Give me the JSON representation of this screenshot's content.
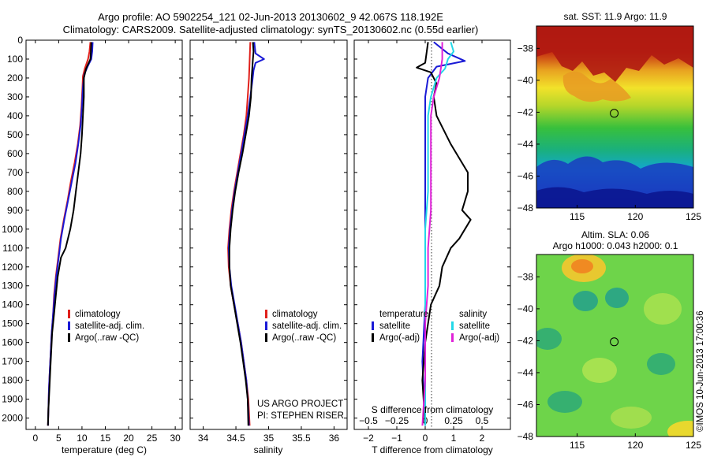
{
  "header": {
    "title_line1": "Argo profile: AO 5902254_121 02-Jun-2013 20130602_9 42.067S 118.192E",
    "title_line2": "Climatology: CARS2009. Satellite-adjusted climatology: synTS_20130602.nc (0.55d earlier)"
  },
  "credits": {
    "project": "US ARGO PROJECT",
    "pi": "PI: STEPHEN RISER"
  },
  "watermark": "©IMOS 10-Jun-2013 17:00:36",
  "colors": {
    "climatology": "#e0201b",
    "satellite": "#1a1ad6",
    "argo": "#000000",
    "satellite_salinity": "#22d8e8",
    "argo_salinity": "#e022d8"
  },
  "chart_data": [
    {
      "type": "line",
      "name": "temperature-profile",
      "xlabel": "temperature (deg C)",
      "xlim": [
        -2,
        31.5
      ],
      "xticks": [
        0,
        5,
        10,
        15,
        20,
        25,
        30
      ],
      "ylim": [
        0,
        2060
      ],
      "yticks": [
        0,
        100,
        200,
        300,
        400,
        500,
        600,
        700,
        800,
        900,
        1000,
        1100,
        1200,
        1300,
        1400,
        1500,
        1600,
        1700,
        1800,
        1900,
        2000
      ],
      "legend": [
        "climatology",
        "satellite-adj. clim.",
        "Argo(..raw -QC)"
      ],
      "legend_position": "lower-center",
      "series": [
        {
          "name": "climatology",
          "color_key": "climatology",
          "points": [
            [
              11.8,
              10
            ],
            [
              11.6,
              60
            ],
            [
              11.3,
              100
            ],
            [
              10.6,
              150
            ],
            [
              10.2,
              190
            ],
            [
              10.1,
              250
            ],
            [
              9.9,
              350
            ],
            [
              9.6,
              450
            ],
            [
              9.1,
              550
            ],
            [
              8.4,
              650
            ],
            [
              7.6,
              750
            ],
            [
              6.9,
              850
            ],
            [
              6.1,
              950
            ],
            [
              5.4,
              1050
            ],
            [
              4.9,
              1150
            ],
            [
              4.4,
              1250
            ],
            [
              4.0,
              1350
            ],
            [
              3.8,
              1450
            ],
            [
              3.5,
              1550
            ],
            [
              3.3,
              1650
            ],
            [
              3.1,
              1750
            ],
            [
              2.9,
              1850
            ],
            [
              2.8,
              1950
            ],
            [
              2.7,
              2040
            ]
          ]
        },
        {
          "name": "satellite-adj. clim.",
          "color_key": "satellite",
          "points": [
            [
              12.3,
              10
            ],
            [
              12.2,
              60
            ],
            [
              12.0,
              100
            ],
            [
              11.2,
              140
            ],
            [
              10.5,
              180
            ],
            [
              10.2,
              250
            ],
            [
              10.0,
              350
            ],
            [
              9.7,
              450
            ],
            [
              9.2,
              550
            ],
            [
              8.6,
              650
            ],
            [
              7.8,
              750
            ],
            [
              7.0,
              850
            ],
            [
              6.2,
              950
            ],
            [
              5.5,
              1050
            ],
            [
              5.0,
              1150
            ],
            [
              4.5,
              1250
            ],
            [
              4.1,
              1350
            ],
            [
              3.8,
              1450
            ],
            [
              3.5,
              1550
            ],
            [
              3.3,
              1650
            ],
            [
              3.1,
              1750
            ],
            [
              2.9,
              1850
            ],
            [
              2.8,
              1950
            ],
            [
              2.7,
              2040
            ]
          ]
        },
        {
          "name": "Argo(..raw -QC)",
          "color_key": "argo",
          "points": [
            [
              12.0,
              10
            ],
            [
              11.9,
              60
            ],
            [
              11.8,
              100
            ],
            [
              10.9,
              150
            ],
            [
              10.4,
              200
            ],
            [
              10.4,
              300
            ],
            [
              10.2,
              400
            ],
            [
              10.0,
              500
            ],
            [
              9.7,
              600
            ],
            [
              9.2,
              700
            ],
            [
              8.7,
              800
            ],
            [
              8.2,
              900
            ],
            [
              7.5,
              1000
            ],
            [
              6.5,
              1100
            ],
            [
              5.5,
              1150
            ],
            [
              4.8,
              1250
            ],
            [
              4.4,
              1350
            ],
            [
              4.0,
              1450
            ],
            [
              3.6,
              1550
            ],
            [
              3.4,
              1650
            ],
            [
              3.2,
              1750
            ],
            [
              3.0,
              1850
            ],
            [
              2.8,
              1950
            ],
            [
              2.7,
              2040
            ]
          ]
        }
      ]
    },
    {
      "type": "line",
      "name": "salinity-profile",
      "xlabel": "salinity",
      "xlim": [
        33.8,
        36.2
      ],
      "xticks": [
        34,
        34.5,
        35,
        35.5,
        36
      ],
      "xticklabels": [
        "34",
        "34.5",
        "35",
        "35.5",
        "36"
      ],
      "ylim": [
        0,
        2060
      ],
      "legend": [
        "climatology",
        "satellite-adj. clim.",
        "Argo(..raw -QC)"
      ],
      "legend_position": "lower-center",
      "series": [
        {
          "name": "climatology",
          "color_key": "climatology",
          "points": [
            [
              34.72,
              10
            ],
            [
              34.71,
              100
            ],
            [
              34.7,
              200
            ],
            [
              34.68,
              300
            ],
            [
              34.66,
              400
            ],
            [
              34.62,
              500
            ],
            [
              34.57,
              600
            ],
            [
              34.52,
              700
            ],
            [
              34.47,
              800
            ],
            [
              34.43,
              900
            ],
            [
              34.4,
              1000
            ],
            [
              34.38,
              1100
            ],
            [
              34.39,
              1200
            ],
            [
              34.42,
              1300
            ],
            [
              34.47,
              1400
            ],
            [
              34.53,
              1500
            ],
            [
              34.58,
              1600
            ],
            [
              34.62,
              1700
            ],
            [
              34.66,
              1800
            ],
            [
              34.69,
              1900
            ],
            [
              34.71,
              2040
            ]
          ]
        },
        {
          "name": "satellite-adj. clim.",
          "color_key": "satellite",
          "points": [
            [
              34.78,
              10
            ],
            [
              34.8,
              70
            ],
            [
              34.93,
              100
            ],
            [
              34.8,
              120
            ],
            [
              34.77,
              160
            ],
            [
              34.75,
              220
            ],
            [
              34.72,
              300
            ],
            [
              34.68,
              400
            ],
            [
              34.63,
              500
            ],
            [
              34.58,
              600
            ],
            [
              34.53,
              700
            ],
            [
              34.48,
              800
            ],
            [
              34.44,
              900
            ],
            [
              34.41,
              1000
            ],
            [
              34.39,
              1100
            ],
            [
              34.4,
              1200
            ],
            [
              34.43,
              1300
            ],
            [
              34.48,
              1400
            ],
            [
              34.53,
              1500
            ],
            [
              34.58,
              1600
            ],
            [
              34.62,
              1700
            ],
            [
              34.66,
              1800
            ],
            [
              34.68,
              1900
            ],
            [
              34.7,
              2040
            ]
          ]
        },
        {
          "name": "Argo(..raw -QC)",
          "color_key": "argo",
          "points": [
            [
              34.76,
              10
            ],
            [
              34.77,
              60
            ],
            [
              34.76,
              100
            ],
            [
              34.75,
              150
            ],
            [
              34.74,
              200
            ],
            [
              34.73,
              300
            ],
            [
              34.7,
              400
            ],
            [
              34.65,
              500
            ],
            [
              34.6,
              600
            ],
            [
              34.54,
              700
            ],
            [
              34.49,
              800
            ],
            [
              34.45,
              900
            ],
            [
              34.42,
              1000
            ],
            [
              34.4,
              1100
            ],
            [
              34.4,
              1200
            ],
            [
              34.42,
              1300
            ],
            [
              34.47,
              1400
            ],
            [
              34.52,
              1500
            ],
            [
              34.57,
              1600
            ],
            [
              34.61,
              1700
            ],
            [
              34.65,
              1800
            ],
            [
              34.68,
              1900
            ],
            [
              34.69,
              2040
            ]
          ]
        }
      ]
    },
    {
      "type": "line",
      "name": "difference-profile",
      "xlabel": "T difference from climatology",
      "xlabel_top": "S difference from climatology",
      "xlim": [
        -2.5,
        3
      ],
      "xticks": [
        -2,
        -1,
        0,
        1,
        2
      ],
      "xticklabels": [
        "−2",
        "−1",
        "0",
        "1",
        "2"
      ],
      "x2ticks": [
        -2,
        -1,
        0,
        1,
        2
      ],
      "x2ticklabels": [
        "−0.5",
        "−0.25",
        "0",
        "0.25",
        "0.5"
      ],
      "ylim": [
        0,
        2060
      ],
      "legend_groups": [
        {
          "heading": "temperature",
          "entries": [
            "satellite",
            "Argo(-adj)"
          ]
        },
        {
          "heading": "salinity",
          "entries": [
            "satellite",
            "Argo(-adj)"
          ]
        }
      ],
      "series": [
        {
          "name": "temperature satellite",
          "color_key": "satellite",
          "points": [
            [
              0.3,
              10
            ],
            [
              0.8,
              70
            ],
            [
              1.4,
              110
            ],
            [
              0.4,
              140
            ],
            [
              0.1,
              200
            ],
            [
              0.0,
              300
            ],
            [
              0.0,
              500
            ],
            [
              0.0,
              800
            ],
            [
              0.0,
              1100
            ],
            [
              0.0,
              1400
            ],
            [
              -0.1,
              1700
            ],
            [
              0.0,
              2040
            ]
          ]
        },
        {
          "name": "temperature Argo(-adj)",
          "color_key": "argo",
          "points": [
            [
              0.1,
              10
            ],
            [
              0.0,
              120
            ],
            [
              -0.3,
              145
            ],
            [
              0.2,
              170
            ],
            [
              0.4,
              230
            ],
            [
              0.3,
              300
            ],
            [
              0.4,
              400
            ],
            [
              0.9,
              550
            ],
            [
              1.5,
              700
            ],
            [
              1.5,
              800
            ],
            [
              1.3,
              900
            ],
            [
              1.6,
              950
            ],
            [
              1.2,
              1050
            ],
            [
              0.9,
              1100
            ],
            [
              0.6,
              1200
            ],
            [
              0.5,
              1300
            ],
            [
              0.2,
              1400
            ],
            [
              0.1,
              1500
            ],
            [
              0.0,
              1600
            ],
            [
              -0.1,
              1800
            ],
            [
              0.0,
              2040
            ]
          ]
        },
        {
          "name": "salinity satellite",
          "color_key": "satellite_salinity",
          "points": [
            [
              0.9,
              10
            ],
            [
              1.0,
              60
            ],
            [
              0.8,
              100
            ],
            [
              0.7,
              150
            ],
            [
              0.4,
              200
            ],
            [
              0.2,
              300
            ],
            [
              0.1,
              400
            ],
            [
              0.1,
              600
            ],
            [
              0.1,
              800
            ],
            [
              0.0,
              1000
            ],
            [
              0.0,
              1200
            ],
            [
              0.0,
              1500
            ],
            [
              0.0,
              1800
            ],
            [
              0.0,
              2040
            ]
          ]
        },
        {
          "name": "salinity Argo(-adj)",
          "color_key": "argo_salinity",
          "points": [
            [
              0.6,
              10
            ],
            [
              0.6,
              100
            ],
            [
              0.5,
              200
            ],
            [
              0.3,
              300
            ],
            [
              0.2,
              400
            ],
            [
              0.2,
              500
            ],
            [
              0.2,
              700
            ],
            [
              0.2,
              900
            ],
            [
              0.1,
              1100
            ],
            [
              0.1,
              1300
            ],
            [
              0.0,
              1500
            ],
            [
              0.0,
              1800
            ],
            [
              -0.1,
              2040
            ]
          ]
        }
      ]
    },
    {
      "type": "heatmap",
      "name": "sst-map",
      "title": "sat. SST: 11.9 Argo: 11.9",
      "xlim": [
        111.5,
        125
      ],
      "xticks": [
        115,
        120,
        125
      ],
      "ylim": [
        -48,
        -36.6
      ],
      "yticks": [
        -38,
        -40,
        -42,
        -44,
        -46,
        -48
      ],
      "yticklabels": [
        "−38",
        "−40",
        "−42",
        "−44",
        "−46",
        "−48"
      ],
      "marker": {
        "lon": 118.192,
        "lat": -42.067
      }
    },
    {
      "type": "heatmap",
      "name": "sla-map",
      "title_line1": "Altim. SLA: 0.06",
      "title_line2": "Argo h1000: 0.043 h2000: 0.1",
      "xlim": [
        111.5,
        125
      ],
      "xticks": [
        115,
        120,
        125
      ],
      "ylim": [
        -48,
        -36.6
      ],
      "yticks": [
        -38,
        -40,
        -42,
        -44,
        -46,
        -48
      ],
      "yticklabels": [
        "−38",
        "−40",
        "−42",
        "−44",
        "−46",
        "−48"
      ],
      "marker": {
        "lon": 118.192,
        "lat": -42.067
      }
    }
  ]
}
